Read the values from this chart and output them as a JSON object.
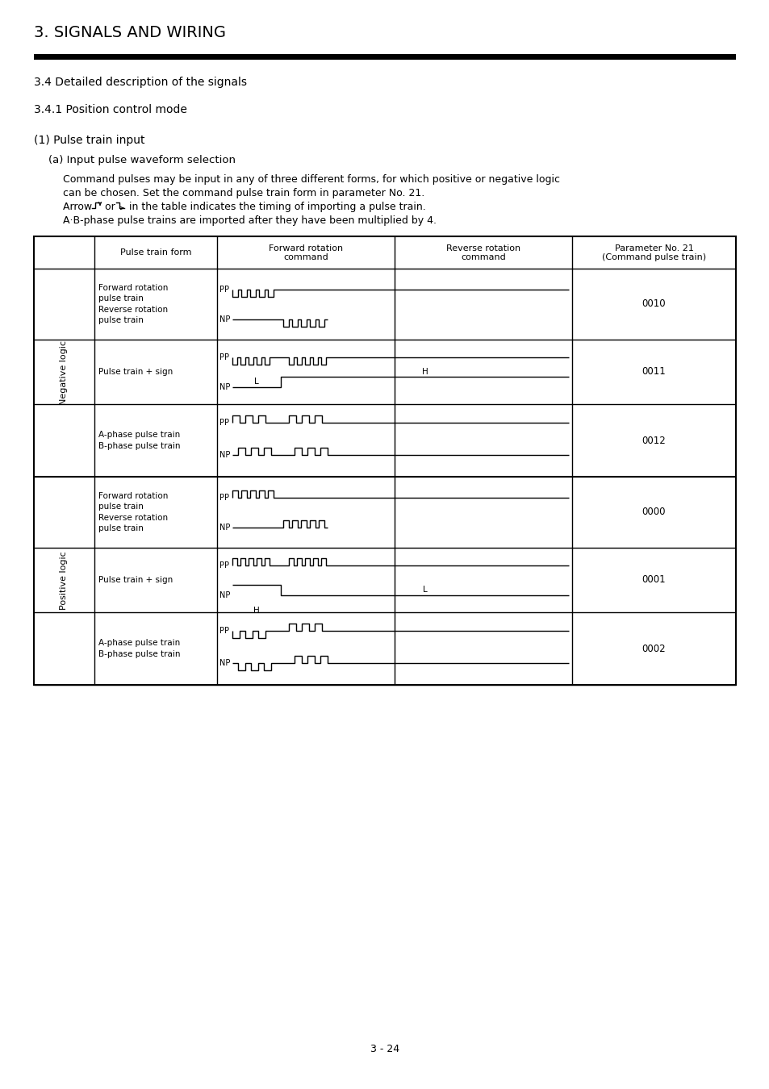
{
  "title": "3. SIGNALS AND WIRING",
  "section1": "3.4 Detailed description of the signals",
  "section2": "3.4.1 Position control mode",
  "section3": "(1) Pulse train input",
  "section4": "(a) Input pulse waveform selection",
  "para1": "Command pulses may be input in any of three different forms, for which positive or negative logic",
  "para2": "can be chosen. Set the command pulse train form in parameter No. 21.",
  "para3a": "Arrow ",
  "para3b": " or ",
  "para3c": " in the table indicates the timing of importing a pulse train.",
  "para4": "A·B-phase pulse trains are imported after they have been multiplied by 4.",
  "col1_hdr": "Pulse train form",
  "col2_hdr1": "Forward rotation",
  "col2_hdr2": "command",
  "col3_hdr1": "Reverse rotation",
  "col3_hdr2": "command",
  "col4_hdr1": "Parameter No. 21",
  "col4_hdr2": "(Command pulse train)",
  "neg_logic": "Negative logic",
  "pos_logic": "Positive logic",
  "neg_row0": "Forward rotation\npulse train\nReverse rotation\npulse train",
  "neg_row1": "Pulse train + sign",
  "neg_row2": "A-phase pulse train\nB-phase pulse train",
  "pos_row0": "Forward rotation\npulse train\nReverse rotation\npulse train",
  "pos_row1": "Pulse train + sign",
  "pos_row2": "A-phase pulse train\nB-phase pulse train",
  "neg_params": [
    "0010",
    "0011",
    "0012"
  ],
  "pos_params": [
    "0000",
    "0001",
    "0002"
  ],
  "page": "3 - 24"
}
